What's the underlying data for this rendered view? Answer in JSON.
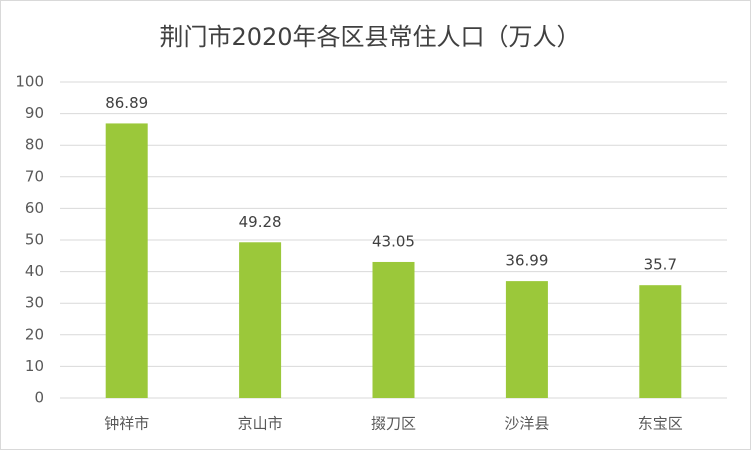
{
  "chart_data": {
    "type": "bar",
    "title": "荆门市2020年各区县常住人口（万人）",
    "categories": [
      "钟祥市",
      "京山市",
      "掇刀区",
      "沙洋县",
      "东宝区"
    ],
    "values": [
      86.89,
      49.28,
      43.05,
      36.99,
      35.7
    ],
    "color": "#9bc83a",
    "ylim": [
      0,
      100
    ],
    "yticks": [
      0,
      10,
      20,
      30,
      40,
      50,
      60,
      70,
      80,
      90,
      100
    ],
    "grid": true
  }
}
